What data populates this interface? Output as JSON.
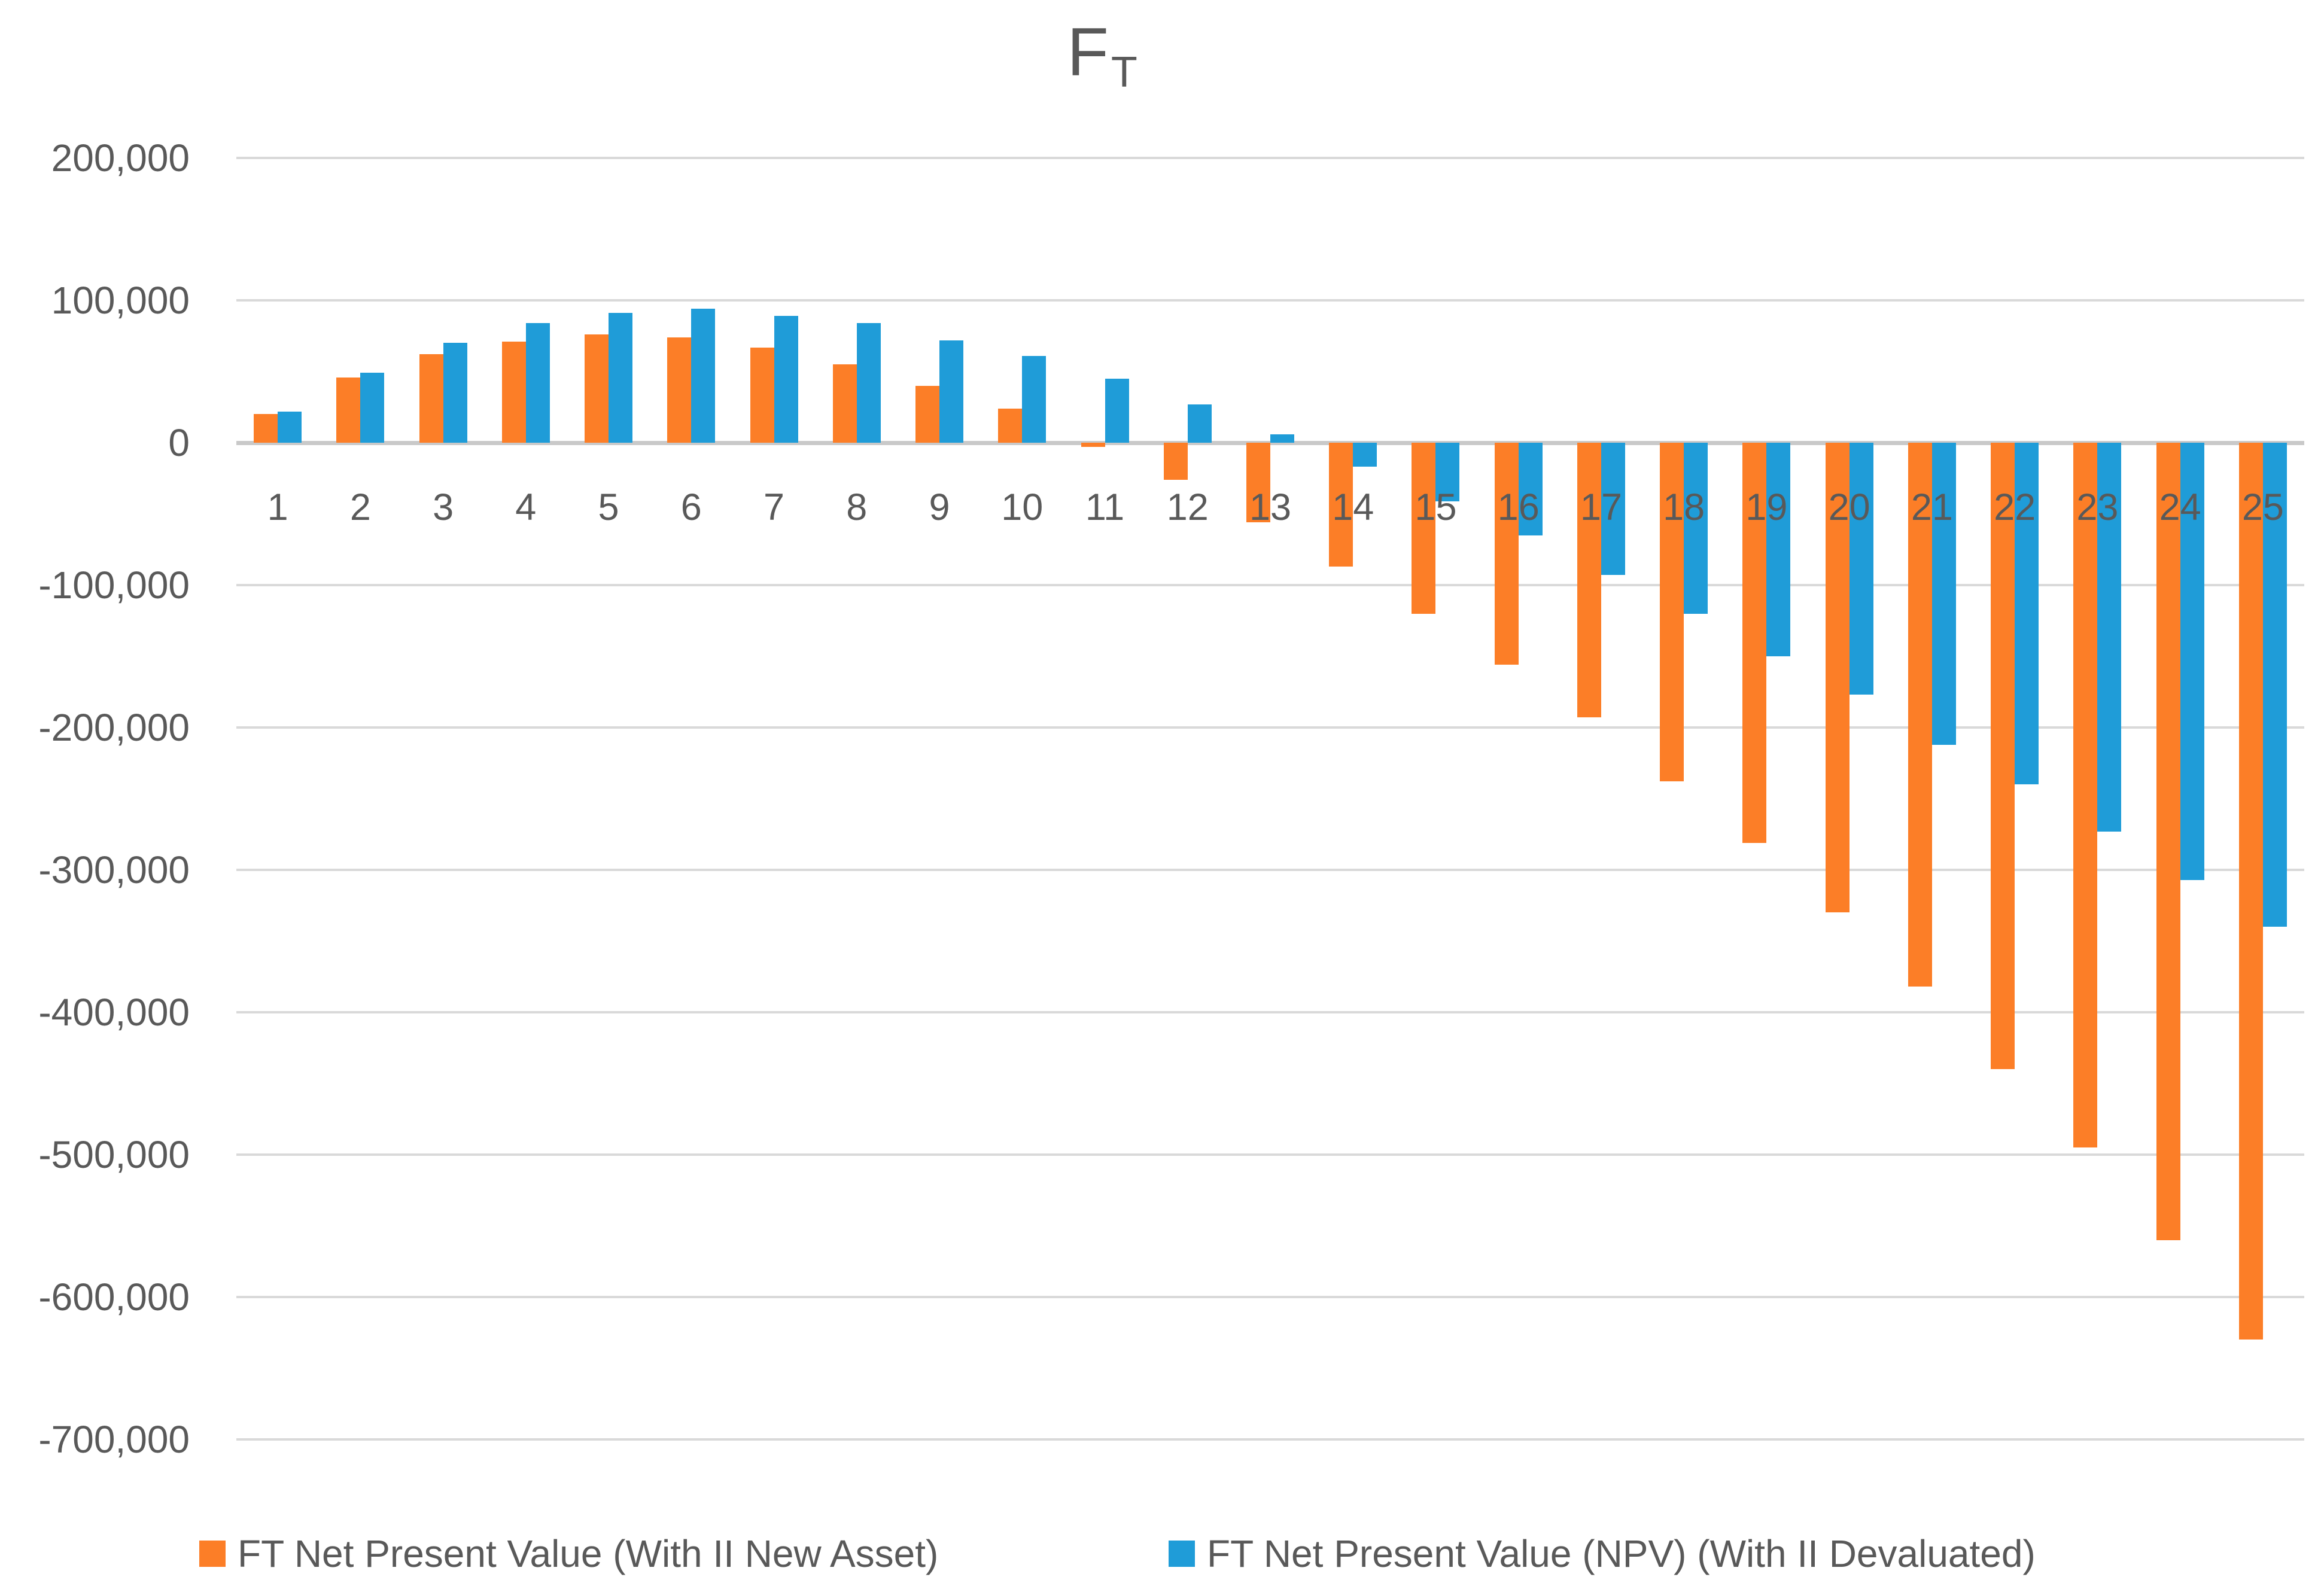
{
  "title": {
    "main": "F",
    "subscript": "T"
  },
  "chart_data": {
    "type": "bar",
    "title": "FT",
    "categories": [
      "1",
      "2",
      "3",
      "4",
      "5",
      "6",
      "7",
      "8",
      "9",
      "10",
      "11",
      "12",
      "13",
      "14",
      "15",
      "16",
      "17",
      "18",
      "19",
      "20",
      "21",
      "22",
      "23",
      "24",
      "25"
    ],
    "series": [
      {
        "key": "new-asset",
        "name": "FT Net Present Value (With II New Asset)",
        "color": "#fc7e27",
        "values": [
          20000,
          46000,
          62000,
          71000,
          76000,
          74000,
          67000,
          55000,
          40000,
          24000,
          -3000,
          -26000,
          -56000,
          -87000,
          -120000,
          -156000,
          -193000,
          -238000,
          -281000,
          -330000,
          -382000,
          -440000,
          -495000,
          -560000,
          -630000
        ]
      },
      {
        "key": "devaluated",
        "name": "FT Net Present Value (NPV) (With II Devaluated)",
        "color": "#1f9cd8",
        "values": [
          22000,
          49000,
          70000,
          84000,
          91000,
          94000,
          89000,
          84000,
          72000,
          61000,
          45000,
          27000,
          6000,
          -17000,
          -41000,
          -65000,
          -93000,
          -120000,
          -150000,
          -177000,
          -212000,
          -240000,
          -273000,
          -307000,
          -340000
        ]
      }
    ],
    "xlabel": "",
    "ylabel": "",
    "ylim": [
      -700000,
      200000
    ],
    "grid": true,
    "legend_position": "bottom",
    "y_ticks": [
      {
        "value": 200000,
        "label": "200,000"
      },
      {
        "value": 100000,
        "label": "100,000"
      },
      {
        "value": 0,
        "label": "0"
      },
      {
        "value": -100000,
        "label": "-100,000"
      },
      {
        "value": -200000,
        "label": "-200,000"
      },
      {
        "value": -300000,
        "label": "-300,000"
      },
      {
        "value": -400000,
        "label": "-400,000"
      },
      {
        "value": -500000,
        "label": "-500,000"
      },
      {
        "value": -600000,
        "label": "-600,000"
      },
      {
        "value": -700000,
        "label": "-700,000"
      }
    ],
    "colors": {
      "gridline": "#d9d9d9",
      "axis_line": "#c9c9c9",
      "text": "#595959"
    }
  }
}
